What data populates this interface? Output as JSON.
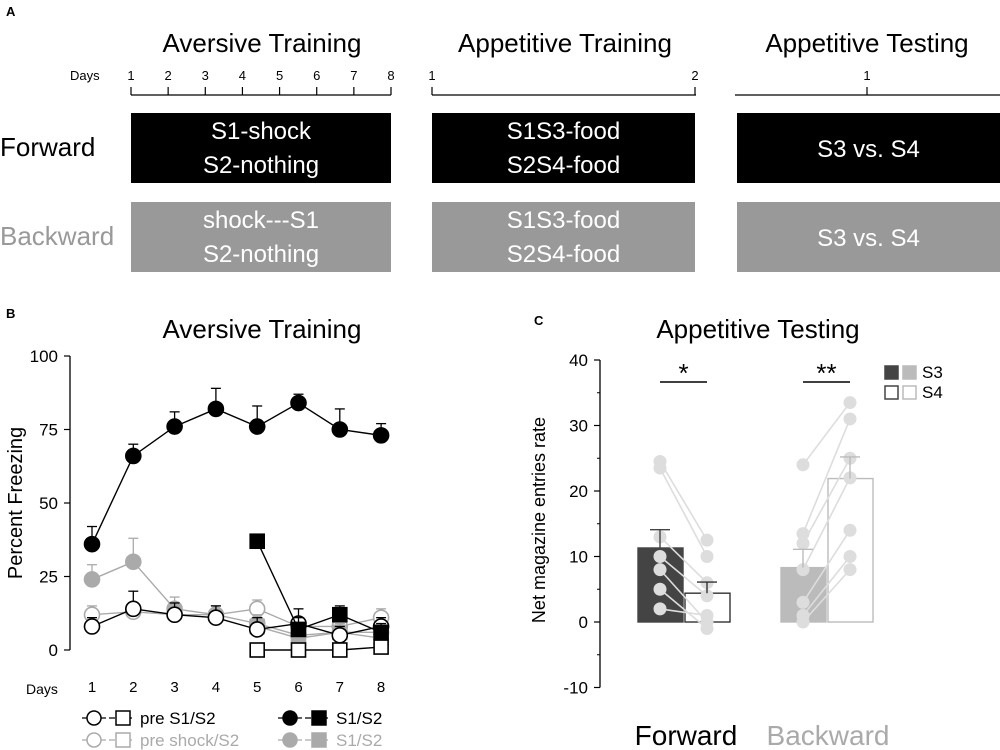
{
  "panel_a": {
    "letter": "A",
    "days_label": "Days",
    "sections": [
      {
        "title": "Aversive Training",
        "days": [
          "1",
          "2",
          "3",
          "4",
          "5",
          "6",
          "7",
          "8"
        ]
      },
      {
        "title": "Appetitive Training",
        "days": [
          "1",
          "2"
        ]
      },
      {
        "title": "Appetitive Testing",
        "days": [
          "1"
        ]
      }
    ],
    "rows": [
      {
        "label": "Forward",
        "color": "#000000",
        "label_color": "#000000",
        "cells": [
          [
            "S1-shock",
            "S2-nothing"
          ],
          [
            "S1S3-food",
            "S2S4-food"
          ],
          [
            "S3 vs. S4"
          ]
        ]
      },
      {
        "label": "Backward",
        "color": "#999999",
        "label_color": "#999999",
        "cells": [
          [
            "shock---S1",
            "S2-nothing"
          ],
          [
            "S1S3-food",
            "S2S4-food"
          ],
          [
            "S3 vs. S4"
          ]
        ]
      }
    ]
  },
  "chart_data": [
    {
      "id": "B",
      "type": "line",
      "letter": "B",
      "title": "Aversive Training",
      "ylabel": "Percent Freezing",
      "xlabel": "Days",
      "ylim": [
        0,
        100
      ],
      "yticks": [
        "0",
        "25",
        "50",
        "75",
        "100"
      ],
      "xticks": [
        "1",
        "2",
        "3",
        "4",
        "5",
        "6",
        "7",
        "8"
      ],
      "series": [
        {
          "name": "Forward pre S1/S2",
          "marker": "circle",
          "fill": "#ffffff",
          "stroke": "#000000",
          "x": [
            1,
            2,
            3,
            4,
            5,
            6,
            7,
            8
          ],
          "values": [
            8,
            14,
            12,
            11,
            7,
            9,
            5,
            8
          ],
          "err": [
            3,
            6,
            4,
            4,
            4,
            5,
            3,
            3
          ]
        },
        {
          "name": "Forward S1/S2 (S1 shock days)",
          "marker": "circle",
          "fill": "#000000",
          "stroke": "#000000",
          "x": [
            1,
            2,
            3,
            4,
            5,
            6,
            7,
            8
          ],
          "values": [
            36,
            66,
            76,
            82,
            76,
            84,
            75,
            73
          ],
          "err": [
            6,
            4,
            5,
            7,
            7,
            3,
            7,
            4
          ]
        },
        {
          "name": "Forward S1/S2 (S2 days)",
          "marker": "square",
          "fill": "#000000",
          "stroke": "#000000",
          "x": [
            5,
            6,
            7,
            8
          ],
          "values": [
            37,
            7,
            12,
            6
          ],
          "err": [
            2,
            4,
            3,
            3
          ]
        },
        {
          "name": "Forward pre S2",
          "marker": "square",
          "fill": "#ffffff",
          "stroke": "#000000",
          "x": [
            5,
            6,
            7,
            8
          ],
          "values": [
            0,
            0,
            0,
            1
          ],
          "err": [
            0,
            0,
            0,
            0
          ]
        },
        {
          "name": "Backward pre shock/S2",
          "marker": "circle",
          "fill": "#ffffff",
          "stroke": "#aaaaaa",
          "x": [
            1,
            2,
            3,
            4,
            5,
            6,
            7,
            8
          ],
          "values": [
            12,
            13,
            12,
            12,
            14,
            8,
            8,
            11
          ],
          "err": [
            3,
            3,
            3,
            3,
            3,
            3,
            3,
            3
          ]
        },
        {
          "name": "Backward S1/S2 (circle)",
          "marker": "circle",
          "fill": "#aaaaaa",
          "stroke": "#aaaaaa",
          "x": [
            1,
            2,
            3,
            4,
            5,
            6,
            7,
            8
          ],
          "values": [
            24,
            30,
            14,
            12,
            9,
            5,
            6,
            6
          ],
          "err": [
            5,
            8,
            4,
            3,
            3,
            3,
            3,
            3
          ]
        },
        {
          "name": "Backward S1/S2 (square)",
          "marker": "square",
          "fill": "#aaaaaa",
          "stroke": "#aaaaaa",
          "x": [
            5,
            6,
            7,
            8
          ],
          "values": [
            8,
            4,
            6,
            4
          ],
          "err": [
            3,
            3,
            3,
            3
          ]
        }
      ],
      "legend": [
        {
          "text": "pre S1/S2",
          "color": "#000000",
          "filled": false
        },
        {
          "text": "S1/S2",
          "color": "#000000",
          "filled": true
        },
        {
          "text": "pre shock/S2",
          "color": "#aaaaaa",
          "filled": false
        },
        {
          "text": "S1/S2",
          "color": "#aaaaaa",
          "filled": true
        }
      ]
    },
    {
      "id": "C",
      "type": "bar",
      "letter": "C",
      "title": "Appetitive Testing",
      "ylabel": "Net magazine entries rate",
      "ylim": [
        -10,
        40
      ],
      "yticks": [
        "-10",
        "0",
        "10",
        "20",
        "30",
        "40"
      ],
      "groups": [
        "Forward",
        "Backward"
      ],
      "group_colors": [
        "#000000",
        "#aaaaaa"
      ],
      "bars": [
        {
          "group": "Forward",
          "stim": "S3",
          "value": 11.3,
          "err": 2.8,
          "fill": "#444444",
          "stroke": "#444444"
        },
        {
          "group": "Forward",
          "stim": "S4",
          "value": 4.4,
          "err": 1.7,
          "fill": "#ffffff",
          "stroke": "#333333"
        },
        {
          "group": "Backward",
          "stim": "S3",
          "value": 8.3,
          "err": 2.8,
          "fill": "#bbbbbb",
          "stroke": "#bbbbbb"
        },
        {
          "group": "Backward",
          "stim": "S4",
          "value": 21.9,
          "err": 3.3,
          "fill": "#ffffff",
          "stroke": "#bbbbbb"
        }
      ],
      "pairs": [
        {
          "group": "Forward",
          "s3": [
            24.5,
            23.5,
            13,
            10,
            8,
            5,
            2
          ],
          "s4": [
            12.5,
            10,
            6,
            4,
            0,
            -1,
            1
          ]
        },
        {
          "group": "Backward",
          "s3": [
            24,
            13.5,
            12,
            8,
            3,
            1,
            0
          ],
          "s4": [
            33.5,
            31,
            25,
            22,
            14,
            10,
            8
          ]
        }
      ],
      "significance": [
        {
          "group": "Forward",
          "label": "*"
        },
        {
          "group": "Backward",
          "label": "**"
        }
      ],
      "legend": [
        {
          "text": "S3",
          "colors": [
            "#444444",
            "#bbbbbb"
          ],
          "filled": true
        },
        {
          "text": "S4",
          "colors": [
            "#444444",
            "#bbbbbb"
          ],
          "filled": false
        }
      ]
    }
  ]
}
